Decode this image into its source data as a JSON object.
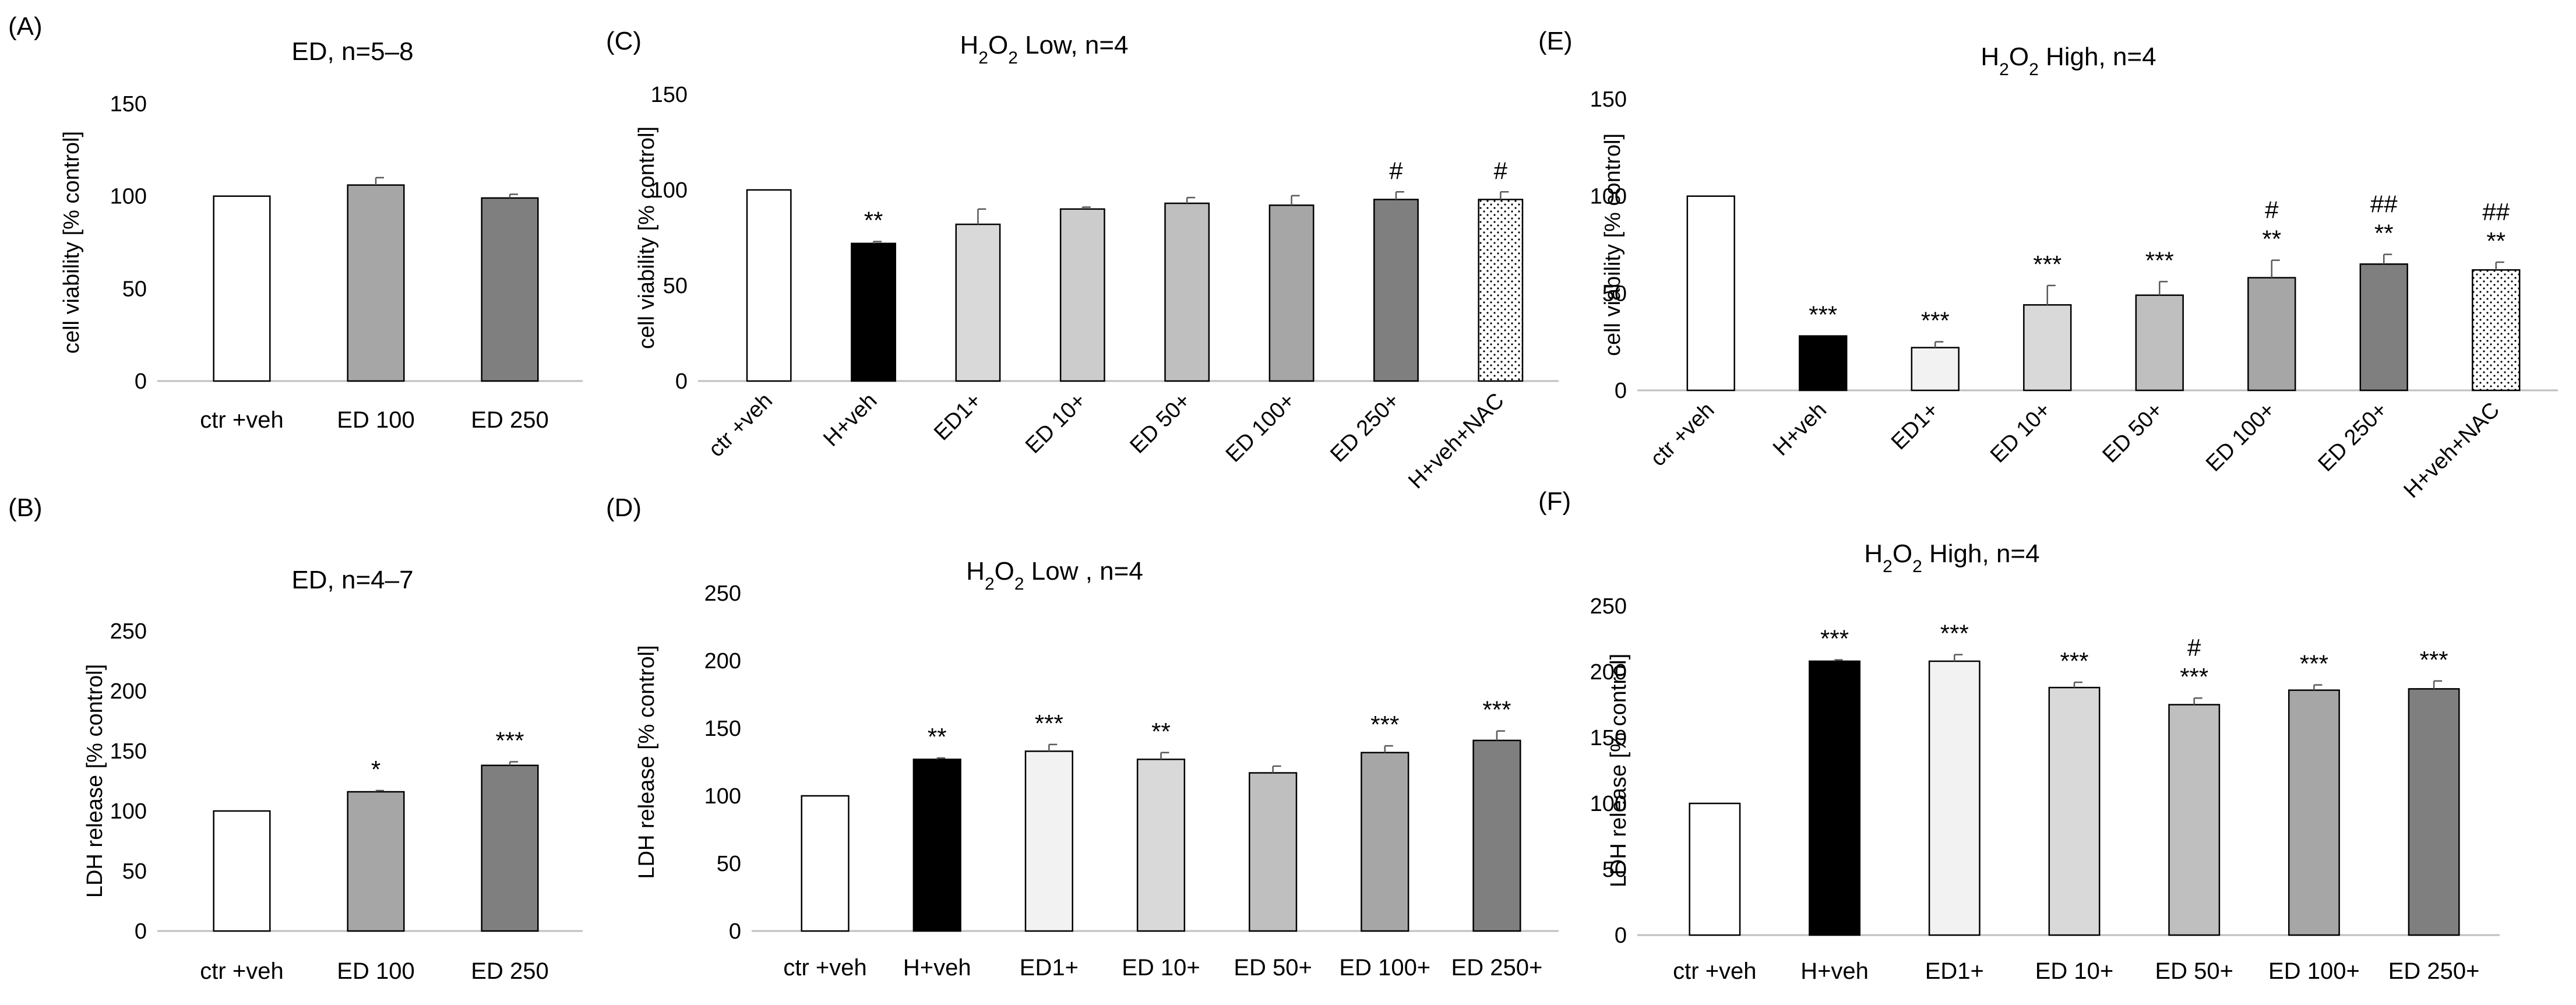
{
  "chart_data": [
    {
      "panel": "(A)",
      "type": "bar",
      "title": "ED, n=5–8",
      "ylabel": "cell viability [% control]",
      "ylim": [
        0,
        150
      ],
      "yticks": [
        0,
        50,
        100,
        150
      ],
      "categories": [
        "ctr +veh",
        "ED 100",
        "ED 250"
      ],
      "values": [
        100,
        106,
        99
      ],
      "errors": [
        0,
        4,
        2
      ],
      "fills": [
        "white",
        "#a6a6a6",
        "#7f7f7f"
      ],
      "annotations": [
        [
          "",
          ""
        ],
        [
          "",
          ""
        ],
        [
          "",
          ""
        ]
      ]
    },
    {
      "panel": "(B)",
      "type": "bar",
      "title": "ED, n=4–7",
      "ylabel": "LDH release [% control]",
      "ylim": [
        0,
        250
      ],
      "yticks": [
        0,
        50,
        100,
        150,
        200,
        250
      ],
      "categories": [
        "ctr +veh",
        "ED 100",
        "ED 250"
      ],
      "values": [
        100,
        116,
        138
      ],
      "errors": [
        0,
        1,
        3
      ],
      "fills": [
        "white",
        "#a6a6a6",
        "#7f7f7f"
      ],
      "annotations": [
        [
          "",
          ""
        ],
        [
          "",
          "*"
        ],
        [
          "",
          "***"
        ]
      ]
    },
    {
      "panel": "(C)",
      "type": "bar",
      "title_main": "H",
      "title_sub": "2",
      "title_o": "O",
      "title_rest": " Low, n=4",
      "ylabel": "cell viability [% control]",
      "ylim": [
        0,
        150
      ],
      "yticks": [
        0,
        50,
        100,
        150
      ],
      "categories": [
        "ctr +veh",
        "H+veh",
        "ED1+",
        "ED 10+",
        "ED 50+",
        "ED 100+",
        "ED 250+",
        "H+veh+NAC"
      ],
      "values": [
        100,
        72,
        82,
        90,
        93,
        92,
        95,
        95
      ],
      "errors": [
        0,
        1,
        8,
        1,
        3,
        5,
        4,
        4
      ],
      "fills": [
        "white",
        "black",
        "#d9d9d9",
        "#cccccc",
        "#bfbfbf",
        "#a6a6a6",
        "#7f7f7f",
        "dots"
      ],
      "annotations": [
        [
          "",
          ""
        ],
        [
          "",
          "**"
        ],
        [
          "",
          ""
        ],
        [
          "",
          ""
        ],
        [
          "",
          ""
        ],
        [
          "",
          ""
        ],
        [
          "#",
          ""
        ],
        [
          "#",
          ""
        ]
      ]
    },
    {
      "panel": "(D)",
      "type": "bar",
      "title_main": "H",
      "title_sub": "2",
      "title_o": "O",
      "title_rest": " Low , n=4",
      "ylabel": "LDH release [% control]",
      "ylim": [
        0,
        250
      ],
      "yticks": [
        0,
        50,
        100,
        150,
        200,
        250
      ],
      "categories": [
        "ctr +veh",
        "H+veh",
        "ED1+",
        "ED 10+",
        "ED 50+",
        "ED 100+",
        "ED 250+"
      ],
      "values": [
        100,
        127,
        133,
        127,
        117,
        132,
        141
      ],
      "errors": [
        0,
        1,
        5,
        5,
        5,
        5,
        7
      ],
      "fills": [
        "white",
        "black",
        "#f2f2f2",
        "#d9d9d9",
        "#bfbfbf",
        "#a6a6a6",
        "#7f7f7f"
      ],
      "annotations": [
        [
          "",
          ""
        ],
        [
          "",
          "**"
        ],
        [
          "",
          "***"
        ],
        [
          "",
          "**"
        ],
        [
          "",
          ""
        ],
        [
          "",
          "***"
        ],
        [
          "",
          "***"
        ]
      ]
    },
    {
      "panel": "(E)",
      "type": "bar",
      "title_main": "H",
      "title_sub": "2",
      "title_o": "O",
      "title_rest": " High, n=4",
      "ylabel": "cell viability [% control]",
      "ylim": [
        0,
        150
      ],
      "yticks": [
        0,
        50,
        100,
        150
      ],
      "categories": [
        "ctr +veh",
        "H+veh",
        "ED1+",
        "ED 10+",
        "ED 50+",
        "ED 100+",
        "ED 250+",
        "H+veh+NAC"
      ],
      "values": [
        100,
        28,
        22,
        44,
        49,
        58,
        65,
        62
      ],
      "errors": [
        0,
        0,
        3,
        10,
        7,
        9,
        5,
        4
      ],
      "fills": [
        "white",
        "black",
        "#f2f2f2",
        "#d9d9d9",
        "#bfbfbf",
        "#a6a6a6",
        "#7f7f7f",
        "dots"
      ],
      "annotations": [
        [
          "",
          ""
        ],
        [
          "",
          "***"
        ],
        [
          "",
          "***"
        ],
        [
          "",
          "***"
        ],
        [
          "",
          "***"
        ],
        [
          "#",
          "**"
        ],
        [
          "##",
          "**"
        ],
        [
          "##",
          "**"
        ]
      ]
    },
    {
      "panel": "(F)",
      "type": "bar",
      "title_main": "H",
      "title_sub": "2",
      "title_o": "O",
      "title_rest": " High, n=4",
      "ylabel": "LDH release [% control]",
      "ylim": [
        0,
        250
      ],
      "yticks": [
        0,
        50,
        100,
        150,
        200,
        250
      ],
      "categories": [
        "ctr +veh",
        "H+veh",
        "ED1+",
        "ED 10+",
        "ED 50+",
        "ED 100+",
        "ED 250+"
      ],
      "values": [
        100,
        208,
        208,
        188,
        175,
        186,
        187
      ],
      "errors": [
        0,
        1,
        5,
        4,
        5,
        4,
        6
      ],
      "fills": [
        "white",
        "black",
        "#f2f2f2",
        "#d9d9d9",
        "#bfbfbf",
        "#a6a6a6",
        "#7f7f7f"
      ],
      "annotations": [
        [
          "",
          ""
        ],
        [
          "",
          "***"
        ],
        [
          "",
          "***"
        ],
        [
          "",
          "***"
        ],
        [
          "#",
          "***"
        ],
        [
          "",
          "***"
        ],
        [
          "",
          "***"
        ]
      ]
    }
  ]
}
